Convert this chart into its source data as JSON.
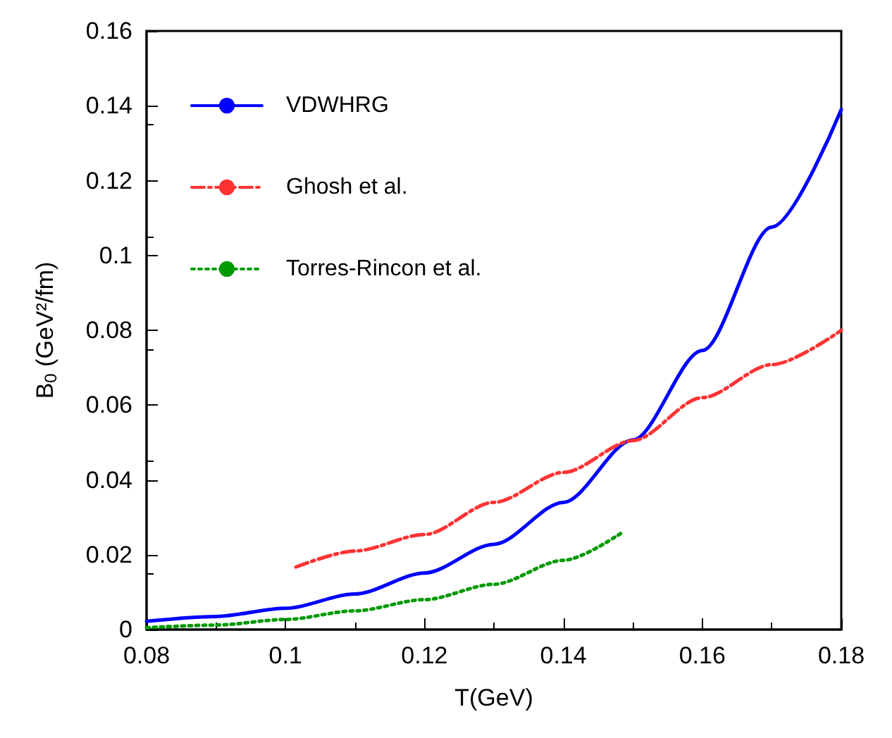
{
  "chart_data": {
    "type": "line",
    "xlabel": "T(GeV)",
    "ylabel": "B$_{0}$ (GeV²/fm)",
    "xlim": [
      0.08,
      0.18
    ],
    "xticks": [
      0.08,
      0.1,
      0.12,
      0.14,
      0.16,
      0.18
    ],
    "ylim": [
      0,
      0.16
    ],
    "yticks": [
      0,
      0.02,
      0.04,
      0.06,
      0.08,
      0.1,
      0.12,
      0.14,
      0.16
    ],
    "grid": false,
    "legend": "top left",
    "marker": "none",
    "series": [
      {
        "name": "VDWHRG",
        "color": "#0000ff",
        "line_style": "solid",
        "x": [
          0.08,
          0.09,
          0.1,
          0.11,
          0.12,
          0.13,
          0.14,
          0.15,
          0.16,
          0.17,
          0.18
        ],
        "values": [
          0.0022,
          0.0035,
          0.0057,
          0.0095,
          0.0151,
          0.0228,
          0.034,
          0.0507,
          0.0746,
          0.1076,
          0.139
        ]
      },
      {
        "name": "Ghosh et al.",
        "color": "#ff3333",
        "line_style": "dashed",
        "x": [
          0.1015,
          0.11,
          0.12,
          0.13,
          0.14,
          0.15,
          0.16,
          0.17,
          0.18
        ],
        "values": [
          0.0167,
          0.021,
          0.0254,
          0.034,
          0.042,
          0.0505,
          0.062,
          0.0708,
          0.08
        ]
      },
      {
        "name": "Torres-Rincon et al.",
        "color": "#009900",
        "line_style": "dotted",
        "x": [
          0.08,
          0.09,
          0.1,
          0.11,
          0.12,
          0.13,
          0.14,
          0.1485
        ],
        "values": [
          0.0005,
          0.0012,
          0.0027,
          0.005,
          0.008,
          0.0121,
          0.0185,
          0.026
        ]
      }
    ]
  }
}
